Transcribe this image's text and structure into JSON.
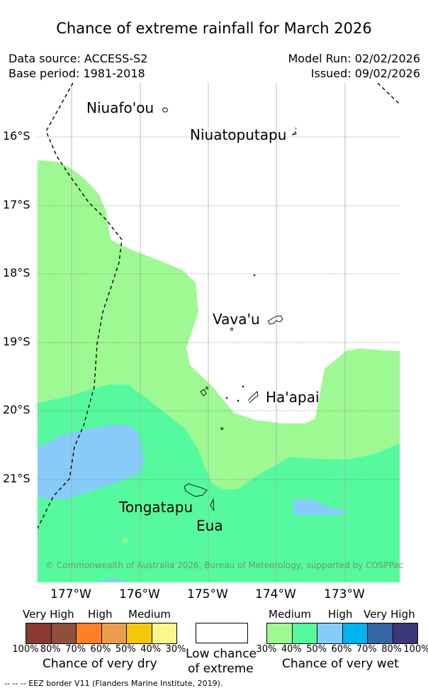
{
  "title": "Chance of extreme rainfall for March 2026",
  "meta": {
    "data_source": "Data source: ACCESS-S2",
    "base_period": "Base period: 1981-2018",
    "model_run": "Model Run: 02/02/2026",
    "issued": "Issued: 09/02/2026"
  },
  "map": {
    "lon_labels": [
      "177°W",
      "176°W",
      "175°W",
      "174°W",
      "173°W"
    ],
    "lat_labels": [
      "16°S",
      "17°S",
      "18°S",
      "19°S",
      "20°S",
      "21°S"
    ],
    "places": {
      "niuafoou": "Niuafo'ou",
      "niuatoputapu": "Niuatoputapu",
      "vavau": "Vava'u",
      "haapai": "Ha'apai",
      "tongatapu": "Tongatapu",
      "eua": "Eua"
    },
    "copyright": "© Commonwealth of Australia 2026, Bureau of Meteorology, supported by COSPPac",
    "colors": {
      "medium_wet": "#9ef993",
      "high_wet": "#55fa9f",
      "very_high_wet": "#87cbfa",
      "grid": "#aaaaaa"
    }
  },
  "legend": {
    "dry": {
      "headers": [
        "Very High",
        "High",
        "Medium"
      ],
      "colors": [
        "#8b3a32",
        "#8e4f3c",
        "#ff7f26",
        "#ec9d4c",
        "#f1c80b",
        "#fdf78b"
      ],
      "ticks": [
        "100%",
        "80%",
        "70%",
        "60%",
        "50%",
        "40%",
        "30%"
      ],
      "caption": "Chance of very dry"
    },
    "low": {
      "line1": "Low chance",
      "line2": "of extreme"
    },
    "wet": {
      "headers": [
        "Medium",
        "High",
        "Very High"
      ],
      "colors": [
        "#9ef993",
        "#55fa9f",
        "#87cbfa",
        "#00b2ef",
        "#3565a4",
        "#3b3877"
      ],
      "ticks": [
        "30%",
        "40%",
        "50%",
        "60%",
        "70%",
        "80%",
        "100%"
      ],
      "caption": "Chance of very wet"
    },
    "eez_note": "-- -- -- EEZ border V11 (Flanders Marine Institute, 2019)."
  }
}
